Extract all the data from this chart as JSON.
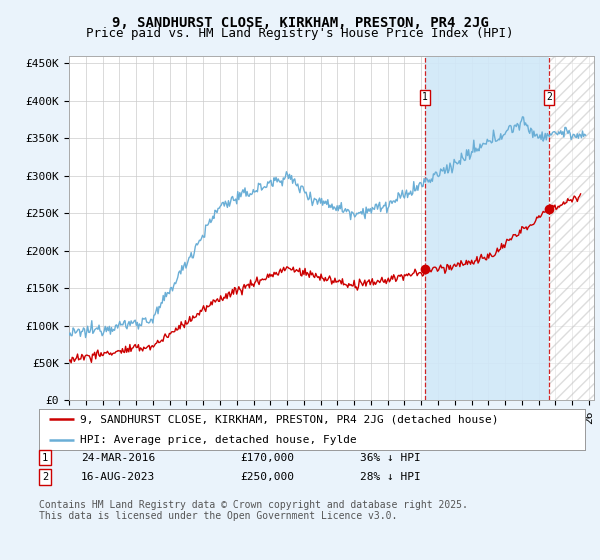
{
  "title": "9, SANDHURST CLOSE, KIRKHAM, PRESTON, PR4 2JG",
  "subtitle": "Price paid vs. HM Land Registry's House Price Index (HPI)",
  "ylim": [
    0,
    460000
  ],
  "yticks": [
    0,
    50000,
    100000,
    150000,
    200000,
    250000,
    300000,
    350000,
    400000,
    450000
  ],
  "ytick_labels": [
    "£0",
    "£50K",
    "£100K",
    "£150K",
    "£200K",
    "£250K",
    "£300K",
    "£350K",
    "£400K",
    "£450K"
  ],
  "xlim_start": 1995.0,
  "xlim_end": 2026.3,
  "hpi_color": "#6aaed6",
  "price_color": "#cc0000",
  "vline_color": "#cc0000",
  "shade_color": "#d0e8f8",
  "hatch_color": "#cccccc",
  "marker1_x": 2016.22,
  "marker1_label": "1",
  "marker2_x": 2023.62,
  "marker2_label": "2",
  "marker1_price_y": 170000,
  "marker2_price_y": 250000,
  "legend_label_red": "9, SANDHURST CLOSE, KIRKHAM, PRESTON, PR4 2JG (detached house)",
  "legend_label_blue": "HPI: Average price, detached house, Fylde",
  "annotation1_label": "1",
  "annotation1_date": "24-MAR-2016",
  "annotation1_price": "£170,000",
  "annotation1_hpi": "36% ↓ HPI",
  "annotation2_label": "2",
  "annotation2_date": "16-AUG-2023",
  "annotation2_price": "£250,000",
  "annotation2_hpi": "28% ↓ HPI",
  "footer": "Contains HM Land Registry data © Crown copyright and database right 2025.\nThis data is licensed under the Open Government Licence v3.0.",
  "background_color": "#eaf3fb",
  "plot_bg_color": "#ffffff",
  "title_fontsize": 10,
  "subtitle_fontsize": 9,
  "tick_fontsize": 8,
  "legend_fontsize": 8,
  "annotation_fontsize": 8,
  "footer_fontsize": 7
}
